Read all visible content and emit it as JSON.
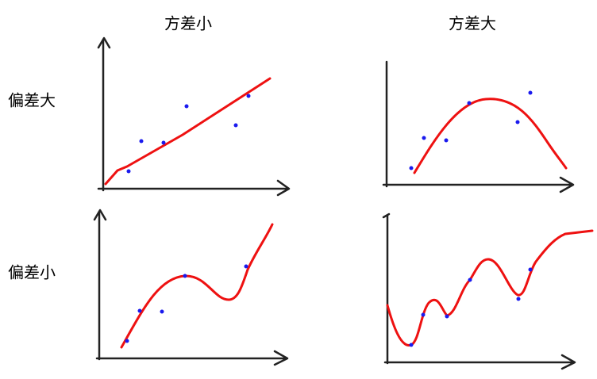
{
  "column_titles": [
    "方差小",
    "方差大"
  ],
  "row_labels": [
    "偏差大",
    "偏差小"
  ]
}
